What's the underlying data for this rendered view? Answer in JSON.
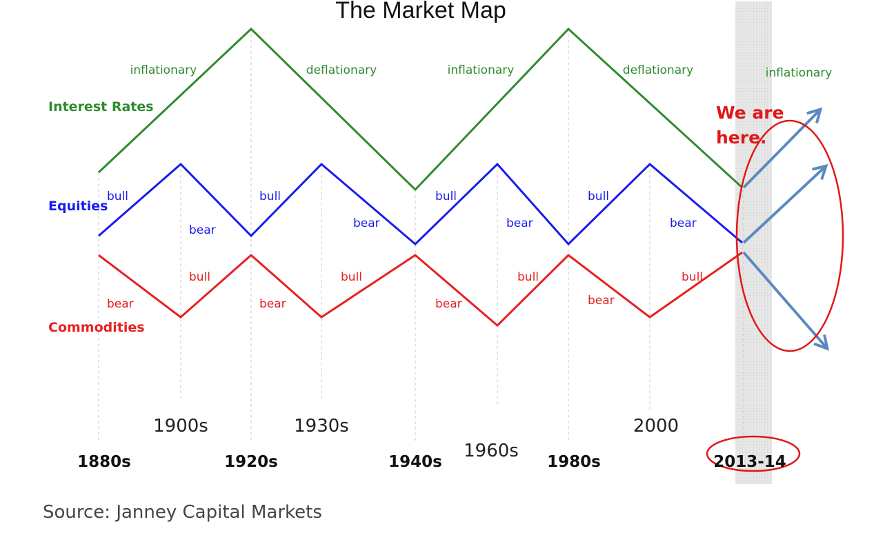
{
  "title": "The Market Map",
  "source": "Source: Janney Capital Markets",
  "annotation": {
    "line1": "We are",
    "line2": "here."
  },
  "highlight_tick": "2013-14",
  "colors": {
    "interest": "#2e8b2e",
    "equities": "#1a1aee",
    "commodities": "#e82020",
    "arrow": "#5b8ac0",
    "annotation": "#e01818"
  },
  "series_labels": {
    "interest": "Interest Rates",
    "equities": "Equities",
    "commodities": "Commodities"
  },
  "phases": [
    "inflationary",
    "deflationary",
    "inflationary",
    "deflationary",
    "inflationary"
  ],
  "equity_labels": [
    "bull",
    "bear",
    "bull",
    "bear",
    "bull",
    "bear",
    "bull",
    "bear"
  ],
  "commodity_labels": [
    "bear",
    "bull",
    "bear",
    "bull",
    "bear",
    "bull",
    "bear",
    "bull"
  ],
  "ticks_top": [
    "1900s",
    "1930s",
    "1960s",
    "2000"
  ],
  "ticks_bottom": [
    "1880s",
    "1920s",
    "1940s",
    "1980s",
    "2013-14"
  ]
}
